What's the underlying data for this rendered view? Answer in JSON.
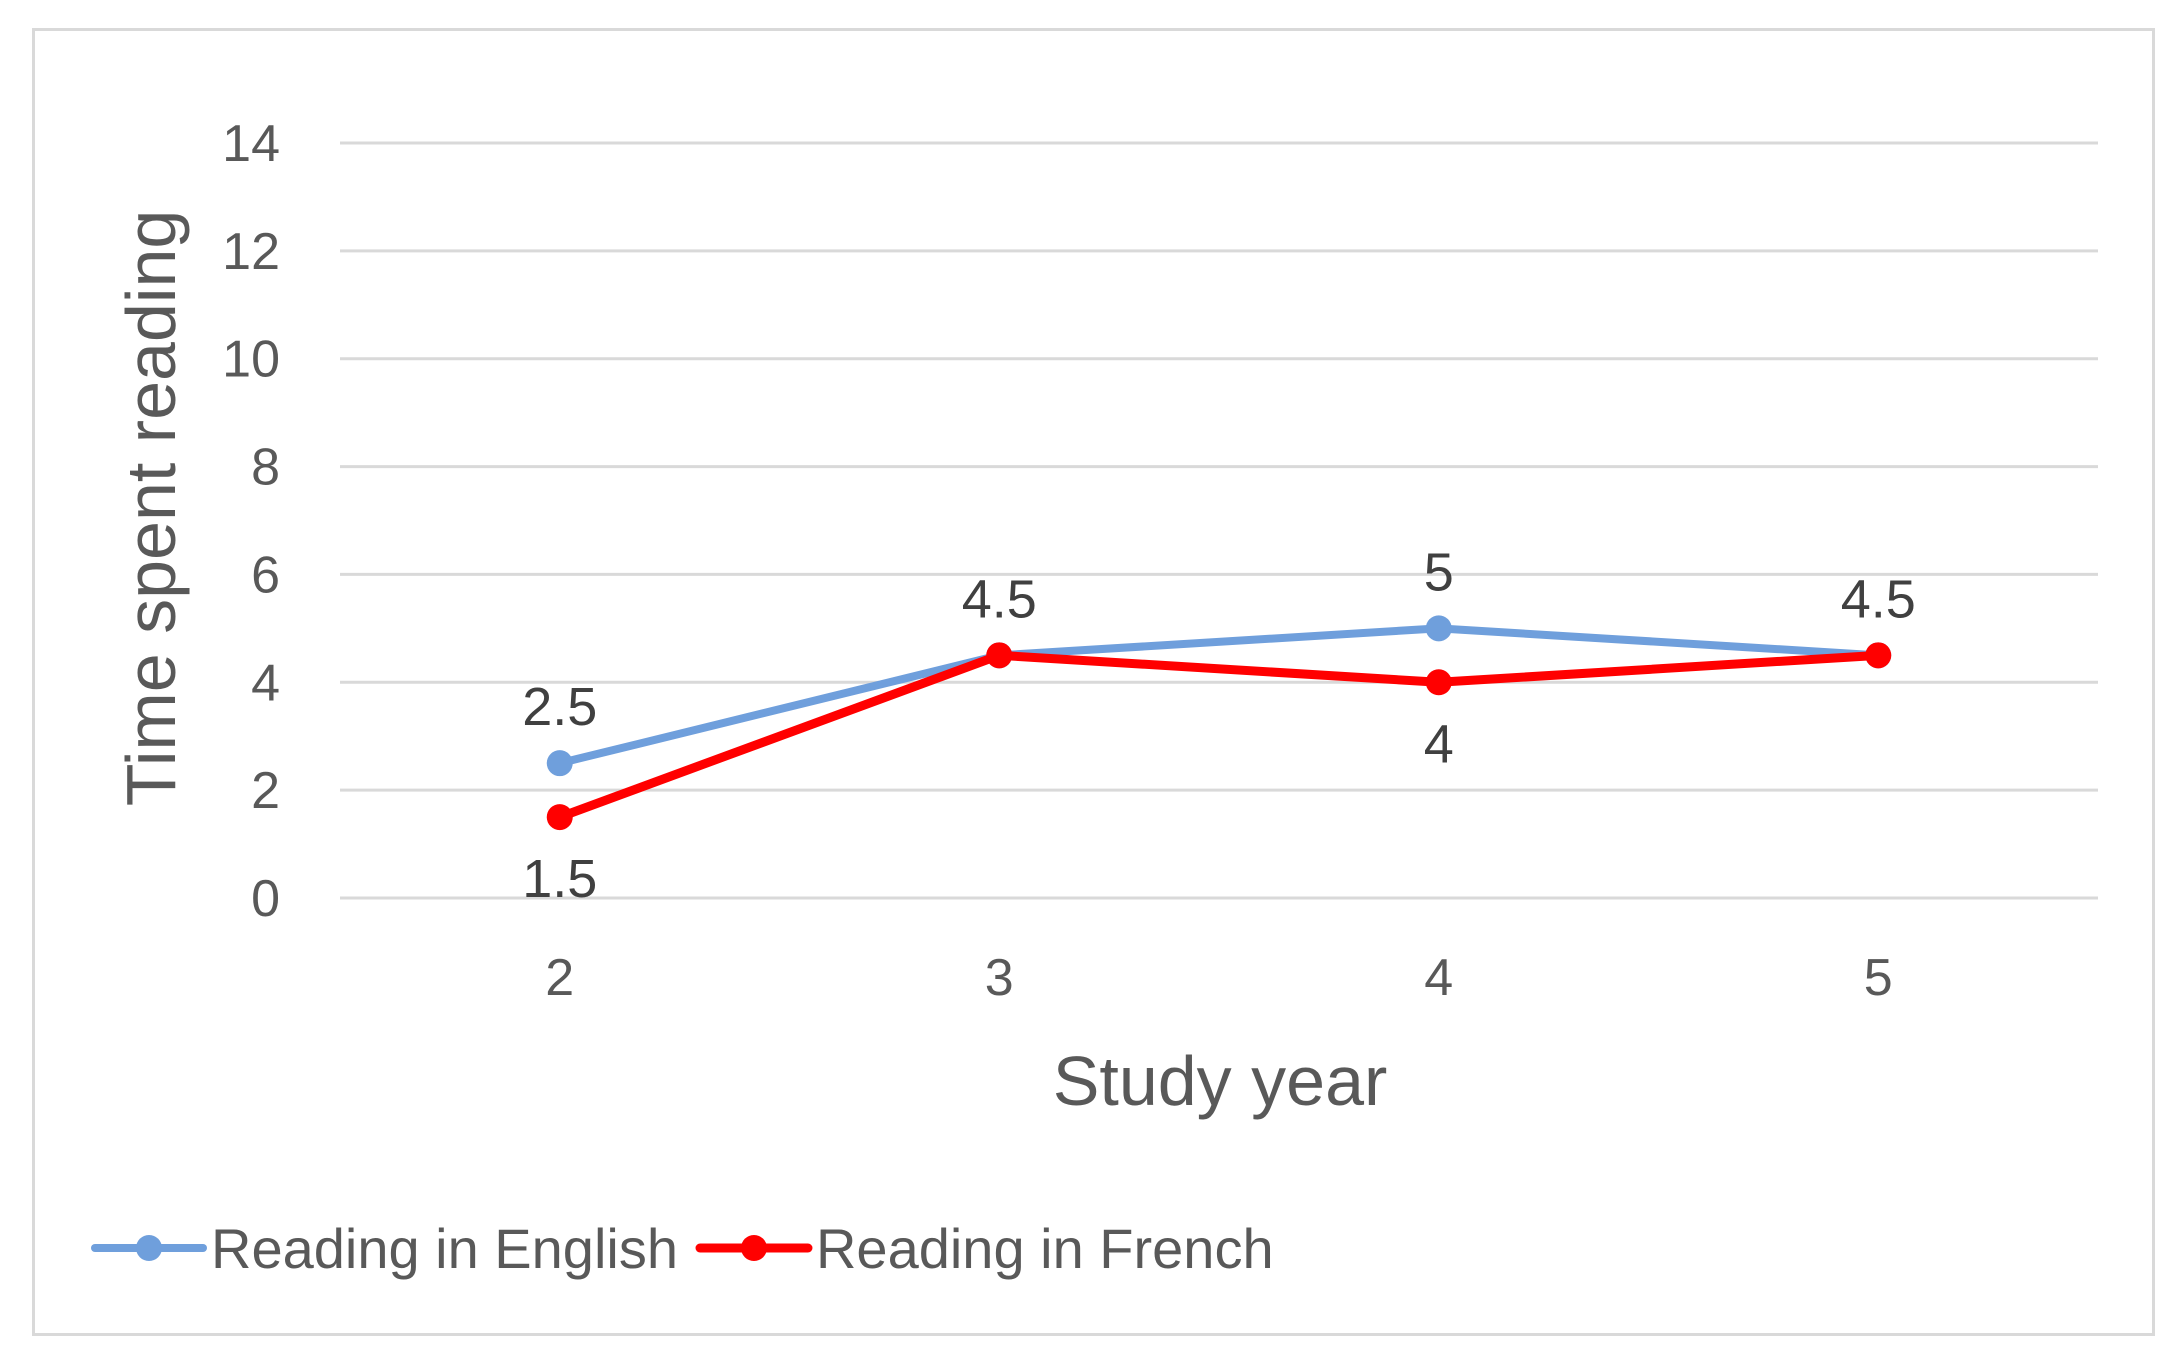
{
  "chart_data": {
    "type": "line",
    "title": "",
    "xlabel": "Study year",
    "ylabel": "Time spent reading",
    "categories": [
      "2",
      "3",
      "4",
      "5"
    ],
    "ylim": [
      0,
      14
    ],
    "yticks": [
      "0",
      "2",
      "4",
      "6",
      "8",
      "10",
      "12",
      "14"
    ],
    "grid": true,
    "legend_position": "bottom-left",
    "series": [
      {
        "name": "Reading in English",
        "color": "#6f9fdc",
        "values": [
          2.5,
          4.5,
          5,
          4.5
        ],
        "labels": [
          "2.5",
          "",
          "5",
          ""
        ],
        "label_positions": [
          "above",
          "none",
          "above",
          "none"
        ]
      },
      {
        "name": "Reading in French",
        "color": "#ff0000",
        "values": [
          1.5,
          4.5,
          4,
          4.5
        ],
        "labels": [
          "1.5",
          "4.5",
          "4",
          "4.5"
        ],
        "label_positions": [
          "below",
          "above",
          "below",
          "above"
        ]
      }
    ]
  }
}
